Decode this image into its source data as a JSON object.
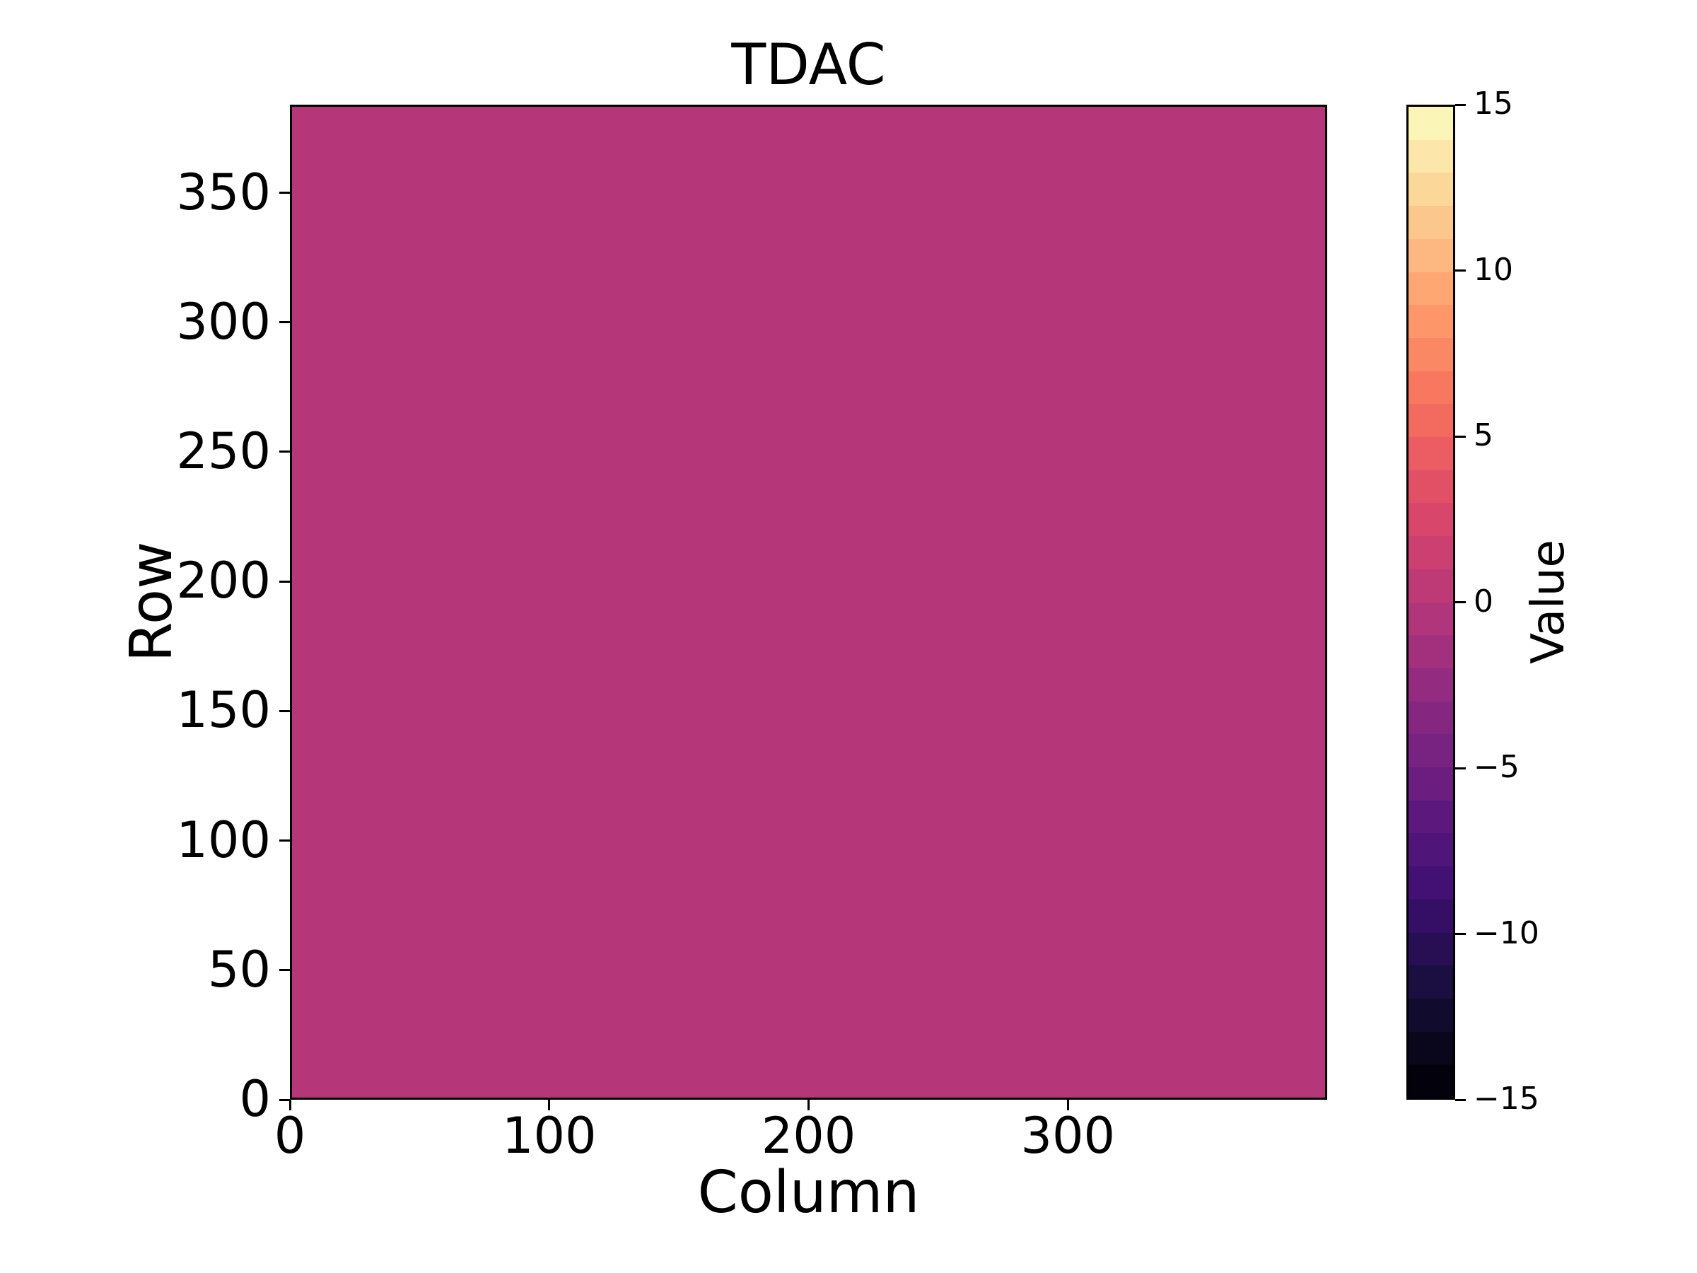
{
  "title": "TDAC",
  "chart_data": {
    "type": "heatmap",
    "title": "TDAC",
    "xlabel": "Column",
    "ylabel": "Row",
    "colorbar_label": "Value",
    "xlim": [
      0,
      400
    ],
    "ylim": [
      0,
      384
    ],
    "value_range": [
      -15,
      15
    ],
    "x_ticks": [
      0,
      100,
      200,
      300
    ],
    "y_ticks": [
      0,
      50,
      100,
      150,
      200,
      250,
      300,
      350
    ],
    "colorbar_ticks": [
      15,
      10,
      5,
      0,
      -5,
      -10,
      -15
    ],
    "grid": false,
    "legend": "none",
    "uniform_value": 0,
    "data_summary": "All 400 columns x 384 rows share one uniform value of approximately 0 (single flat color).",
    "heatmap_fill_color": "#b53679",
    "colormap": "magma (discrete, 30 steps)",
    "colorbar_colors_bottom_to_top": [
      "#03020c",
      "#0a071d",
      "#110c2e",
      "#1b0e40",
      "#280f53",
      "#350f66",
      "#421173",
      "#501578",
      "#5d187d",
      "#6b1d80",
      "#782281",
      "#852781",
      "#932b80",
      "#a2307d",
      "#b0357a",
      "#be3a76",
      "#cb4071",
      "#d8466b",
      "#e25066",
      "#eb5d62",
      "#f36a5e",
      "#f8785f",
      "#fb8865",
      "#fd976a",
      "#fea773",
      "#fdb780",
      "#fcc78c",
      "#fcd79a",
      "#fce6a9",
      "#fcf5b8"
    ],
    "text_color": "#000000",
    "background_color": "#ffffff"
  }
}
